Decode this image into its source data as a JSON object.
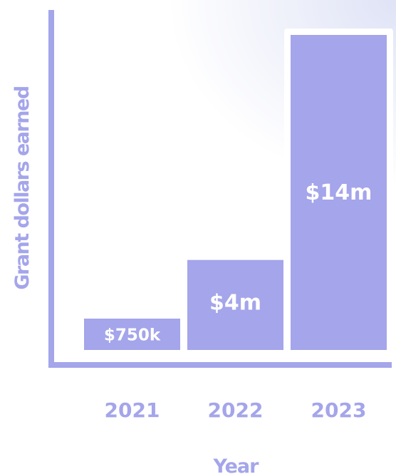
{
  "chart_data": {
    "type": "bar",
    "categories": [
      "2021",
      "2022",
      "2023"
    ],
    "values": [
      0.75,
      4,
      14
    ],
    "value_unit": "million USD",
    "data_labels": [
      "$750k",
      "$4m",
      "$14m"
    ],
    "xlabel": "Year",
    "ylabel": "Grant dollars earned",
    "ylim": [
      0,
      14
    ],
    "grid": false,
    "legend": "none",
    "highlighted_category": "2023"
  },
  "colors": {
    "bar": "#a4a5ea",
    "axis": "#a4a5ea",
    "label_text": "#a4a5ea",
    "data_label_text": "#ffffff",
    "highlight_outline": "#ffffff"
  }
}
